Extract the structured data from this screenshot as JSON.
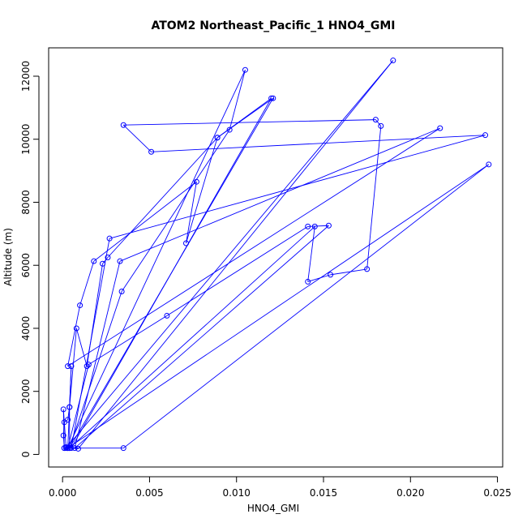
{
  "chart_data": {
    "type": "line",
    "title": "ATOM2 Northeast_Pacific_1 HNO4_GMI",
    "xlabel": "HNO4_GMI",
    "ylabel": "Altitude (m)",
    "xlim": [
      -0.0008,
      0.0253
    ],
    "ylim": [
      -400,
      12900
    ],
    "xticks": [
      0.0,
      0.005,
      0.01,
      0.015,
      0.02,
      0.025
    ],
    "xtick_labels": [
      "0.000",
      "0.005",
      "0.010",
      "0.015",
      "0.020",
      "0.025"
    ],
    "yticks": [
      0,
      2000,
      4000,
      6000,
      8000,
      10000,
      12000
    ],
    "ytick_labels": [
      "0",
      "2000",
      "4000",
      "6000",
      "8000",
      "10000",
      "12000"
    ],
    "color": "#0000ff",
    "marker": "open-circle",
    "grid": false,
    "series": [
      {
        "x": [
          0.0001,
          5e-05,
          0.0001,
          0.0003,
          0.0004,
          0.0005,
          0.0003,
          0.0001,
          5e-05,
          0.0002,
          0.0004,
          0.0004,
          0.0008,
          0.0014,
          0.0023,
          0.0026,
          0.0089,
          0.0121,
          0.0004,
          0.0034,
          0.0096,
          0.0105,
          0.0003,
          0.0015,
          0.006,
          0.0141,
          0.0153,
          0.0007,
          0.0033,
          0.0217,
          0.0003,
          0.001,
          0.0018,
          0.0077,
          0.0071,
          0.0089,
          0.012,
          0.0005,
          0.0027,
          0.0243,
          0.0051,
          0.0035,
          0.018,
          0.0183,
          0.0175,
          0.0154,
          0.0141,
          0.0145,
          0.0004,
          0.0009,
          0.019,
          0.0002,
          0.0035,
          0.0245,
          0.0003
        ],
        "y": [
          200,
          600,
          1020,
          1100,
          1500,
          2800,
          200,
          200,
          1430,
          230,
          200,
          1500,
          4000,
          2800,
          6050,
          6250,
          10050,
          11300,
          200,
          5170,
          10300,
          12200,
          200,
          2850,
          4400,
          7230,
          7260,
          200,
          6130,
          10350,
          2800,
          4730,
          6130,
          8650,
          6700,
          10050,
          11300,
          200,
          6850,
          10130,
          9600,
          10450,
          10620,
          10420,
          5880,
          5700,
          5480,
          7230,
          200,
          180,
          12500,
          200,
          200,
          9200,
          200
        ]
      }
    ]
  }
}
